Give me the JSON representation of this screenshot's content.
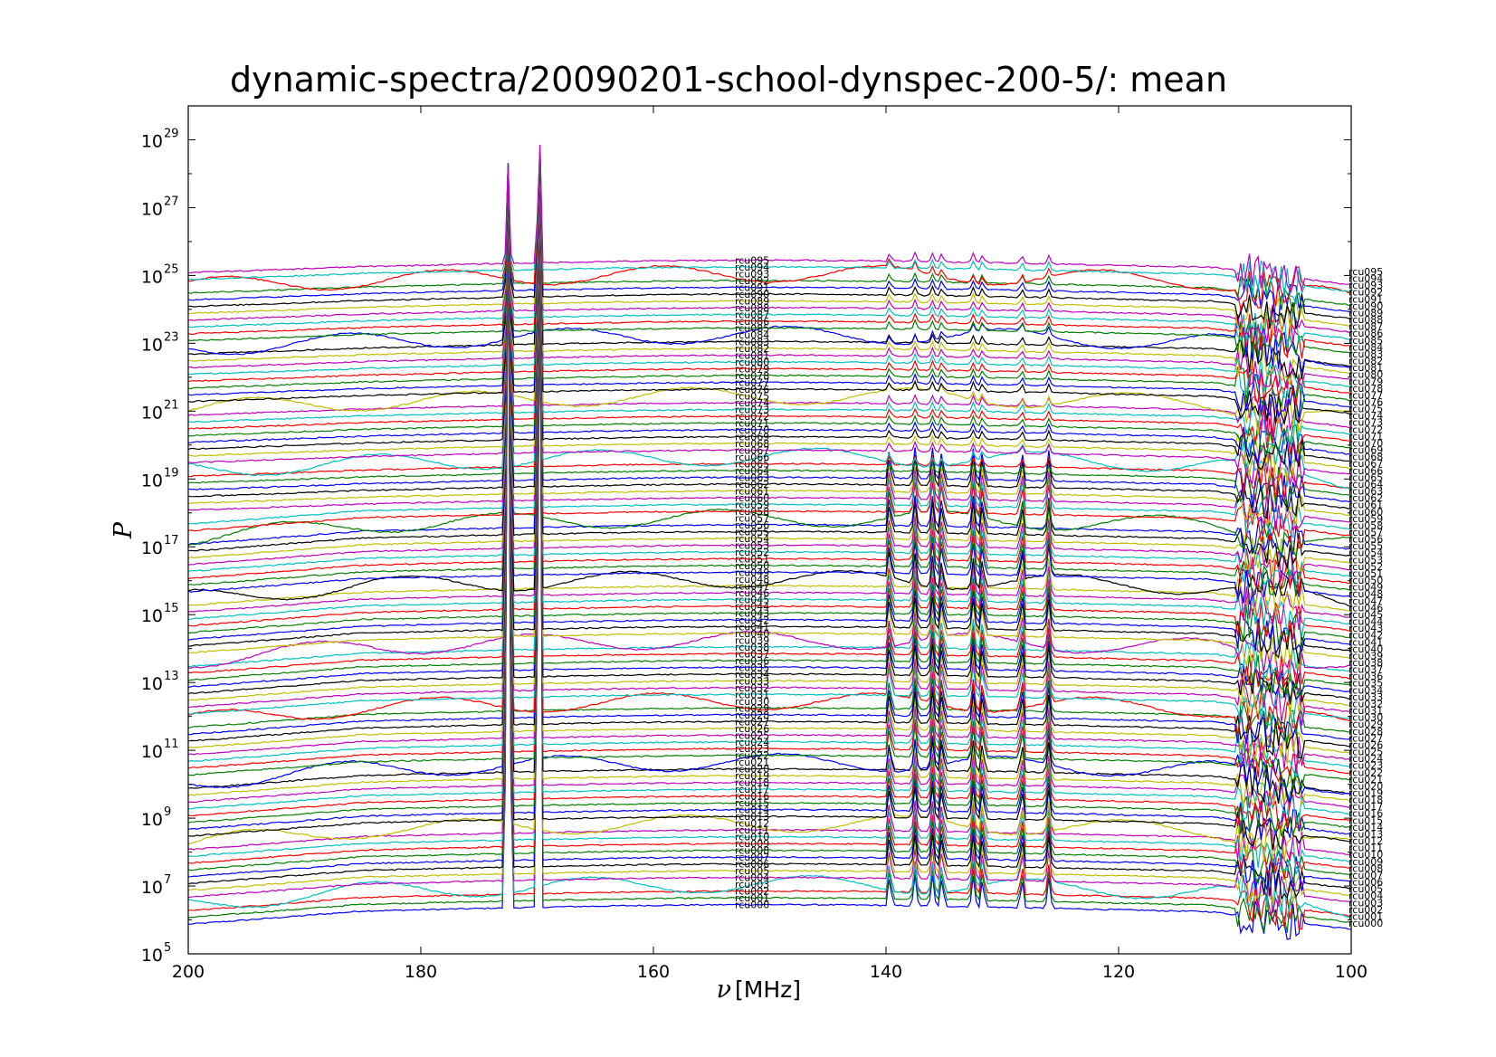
{
  "chart_data": {
    "type": "line",
    "title": "dynamic-spectra/20090201-school-dynspec-200-5/: mean",
    "xlabel_symbol": "ν",
    "xlabel_unit": "[MHz]",
    "ylabel": "P",
    "xlim": [
      200,
      100
    ],
    "ylim_log10": [
      5,
      30
    ],
    "y_scale": "log",
    "grid": false,
    "legend": "none",
    "x_ticks": [
      200,
      180,
      160,
      140,
      120,
      100
    ],
    "y_ticks": [
      {
        "base": "10",
        "exp": "5",
        "value_log10": 5
      },
      {
        "base": "10",
        "exp": "7",
        "value_log10": 7
      },
      {
        "base": "10",
        "exp": "9",
        "value_log10": 9
      },
      {
        "base": "10",
        "exp": "11",
        "value_log10": 11
      },
      {
        "base": "10",
        "exp": "13",
        "value_log10": 13
      },
      {
        "base": "10",
        "exp": "15",
        "value_log10": 15
      },
      {
        "base": "10",
        "exp": "17",
        "value_log10": 17
      },
      {
        "base": "10",
        "exp": "19",
        "value_log10": 19
      },
      {
        "base": "10",
        "exp": "21",
        "value_log10": 21
      },
      {
        "base": "10",
        "exp": "23",
        "value_log10": 23
      },
      {
        "base": "10",
        "exp": "25",
        "value_log10": 25
      },
      {
        "base": "10",
        "exp": "27",
        "value_log10": 27
      },
      {
        "base": "10",
        "exp": "29",
        "value_log10": 29
      }
    ],
    "colors": [
      "#0000ff",
      "#008000",
      "#ff0000",
      "#00bfbf",
      "#bf00bf",
      "#bfbf00",
      "#000000"
    ],
    "series_count": 96,
    "series_name_prefix": "rcu",
    "baseline_log10_first": 6.1,
    "baseline_log10_step": 0.2,
    "common_spikes": [
      {
        "freq": 172.5,
        "peak_log10": 28.3
      },
      {
        "freq": 169.8,
        "peak_log10": 29.6
      }
    ],
    "narrowband_lines_mhz": [
      139.7,
      137.5,
      136.0,
      135.2,
      132.5,
      131.7,
      128.3,
      126.0
    ],
    "rolloff_region_mhz": [
      110,
      100
    ]
  }
}
